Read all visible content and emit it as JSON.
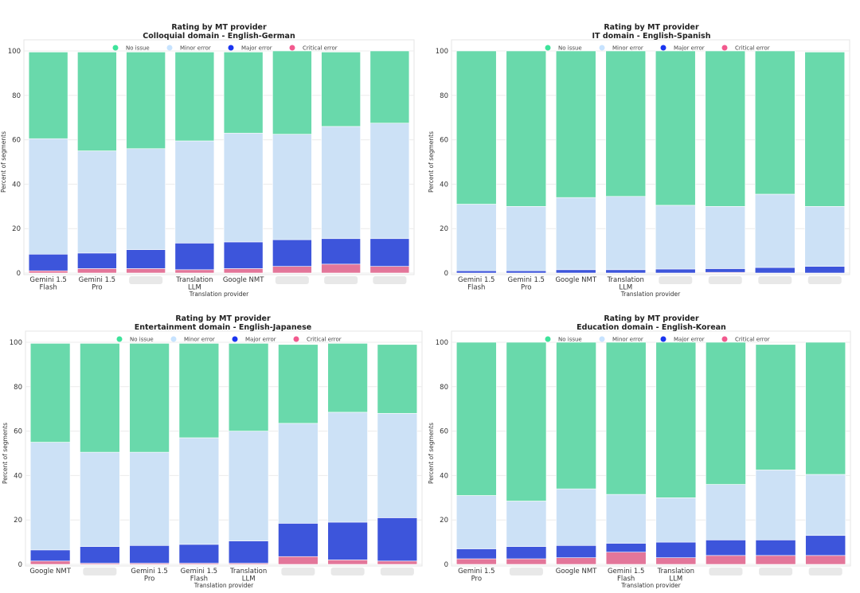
{
  "colors": {
    "no_issue": "#69d9ab",
    "minor_error": "#cce1f6",
    "major_error": "#3d55db",
    "critical_error": "#e3769a",
    "legend_markers": [
      "#3ee39b",
      "#c7e3ff",
      "#1a35f0",
      "#f25a8e"
    ],
    "redaction": "#e8e8e8"
  },
  "chart_data": [
    {
      "type": "bar",
      "stacked": true,
      "title": "Rating by MT provider",
      "subtitle": "Colloquial domain - English-German",
      "xlabel": "Translation provider",
      "ylabel": "Percent of segments",
      "ylim": [
        0,
        100
      ],
      "yticks": [
        "0",
        "20",
        "40",
        "60",
        "80",
        "100"
      ],
      "grid": true,
      "legend": "top-center",
      "categories": [
        "Gemini 1.5\nFlash",
        "Gemini 1.5\nPro",
        "",
        "Translation\nLLM",
        "Google NMT",
        "",
        "",
        ""
      ],
      "series": [
        {
          "name": "Critical error",
          "values": [
            1,
            2,
            2,
            1.5,
            2,
            3,
            4,
            3
          ]
        },
        {
          "name": "Major error",
          "values": [
            7.5,
            7,
            8.5,
            12,
            12,
            12,
            11.5,
            12.5
          ]
        },
        {
          "name": "Minor error",
          "values": [
            52,
            46,
            45.5,
            46,
            49,
            47.5,
            50.5,
            52
          ]
        },
        {
          "name": "No issue",
          "values": [
            39,
            44.5,
            43.5,
            40,
            36.5,
            37.5,
            33.5,
            32.5
          ]
        }
      ]
    },
    {
      "type": "bar",
      "stacked": true,
      "title": "Rating by MT provider",
      "subtitle": "IT domain - English-Spanish",
      "xlabel": "Translation provider",
      "ylabel": "Percent of segments",
      "ylim": [
        0,
        100
      ],
      "yticks": [
        "0",
        "20",
        "40",
        "60",
        "80",
        "100"
      ],
      "grid": true,
      "legend": "top-center",
      "categories": [
        "Gemini 1.5\nFlash",
        "Gemini 1.5\nPro",
        "Google NMT",
        "Translation\nLLM",
        "",
        "",
        "",
        ""
      ],
      "series": [
        {
          "name": "Critical error",
          "values": [
            0,
            0,
            0,
            0,
            0,
            0.3,
            0,
            0
          ]
        },
        {
          "name": "Major error",
          "values": [
            1,
            1,
            1.5,
            1.5,
            1.8,
            1.7,
            2.5,
            3
          ]
        },
        {
          "name": "Minor error",
          "values": [
            30,
            29,
            32.5,
            33,
            28.7,
            28,
            33,
            27
          ]
        },
        {
          "name": "No issue",
          "values": [
            69,
            70,
            66,
            65.5,
            69.5,
            70,
            64.5,
            69.5
          ]
        }
      ]
    },
    {
      "type": "bar",
      "stacked": true,
      "title": "Rating by MT provider",
      "subtitle": "Entertainment domain - English-Japanese",
      "xlabel": "Translation provider",
      "ylabel": "Percent of segments",
      "ylim": [
        0,
        100
      ],
      "yticks": [
        "0",
        "20",
        "40",
        "60",
        "80",
        "100"
      ],
      "grid": true,
      "legend": "top-center",
      "categories": [
        "Google NMT",
        "",
        "Gemini 1.5\nPro",
        "Gemini 1.5\nFlash",
        "Translation\nLLM",
        "",
        "",
        ""
      ],
      "series": [
        {
          "name": "Critical error",
          "values": [
            1.5,
            0.5,
            0.5,
            0.5,
            0.5,
            3.5,
            2,
            1.5
          ]
        },
        {
          "name": "Major error",
          "values": [
            5,
            7.5,
            8,
            8.5,
            10,
            15,
            17,
            19.5
          ]
        },
        {
          "name": "Minor error",
          "values": [
            48.5,
            42.5,
            42,
            48,
            49.5,
            45,
            49.5,
            47
          ]
        },
        {
          "name": "No issue",
          "values": [
            44.5,
            49,
            49,
            42.5,
            39.5,
            35.5,
            31,
            31
          ]
        }
      ]
    },
    {
      "type": "bar",
      "stacked": true,
      "title": "Rating by MT provider",
      "subtitle": "Education domain - English-Korean",
      "xlabel": "Translation provider",
      "ylabel": "Percent of segments",
      "ylim": [
        0,
        100
      ],
      "yticks": [
        "0",
        "20",
        "40",
        "60",
        "80",
        "100"
      ],
      "grid": true,
      "legend": "top-center",
      "categories": [
        "Gemini 1.5\nPro",
        "",
        "Google NMT",
        "Gemini 1.5\nFlash",
        "Translation\nLLM",
        "",
        "",
        ""
      ],
      "series": [
        {
          "name": "Critical error",
          "values": [
            2.5,
            2.5,
            3,
            5.5,
            3,
            4,
            4,
            4
          ]
        },
        {
          "name": "Major error",
          "values": [
            4.5,
            5.5,
            5.5,
            4,
            7,
            7,
            7,
            9
          ]
        },
        {
          "name": "Minor error",
          "values": [
            24,
            20.5,
            25.5,
            22,
            20,
            25,
            31.5,
            27.5
          ]
        },
        {
          "name": "No issue",
          "values": [
            69,
            71.5,
            66,
            68.5,
            70,
            64,
            56.5,
            59.5
          ]
        }
      ]
    }
  ]
}
